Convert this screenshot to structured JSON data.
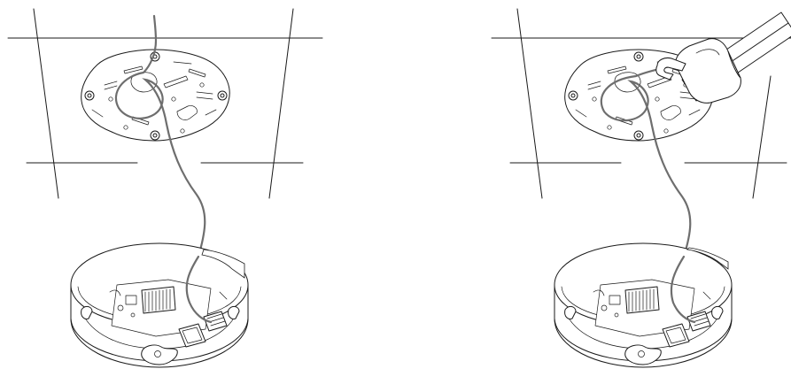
{
  "colors": {
    "line": "#1a1a1a",
    "cable": "#6e6e6e",
    "background": "#ffffff"
  },
  "panels": [
    {
      "name": "step-before-tool",
      "tool_visible": false
    },
    {
      "name": "step-with-tool",
      "tool_visible": true
    }
  ]
}
